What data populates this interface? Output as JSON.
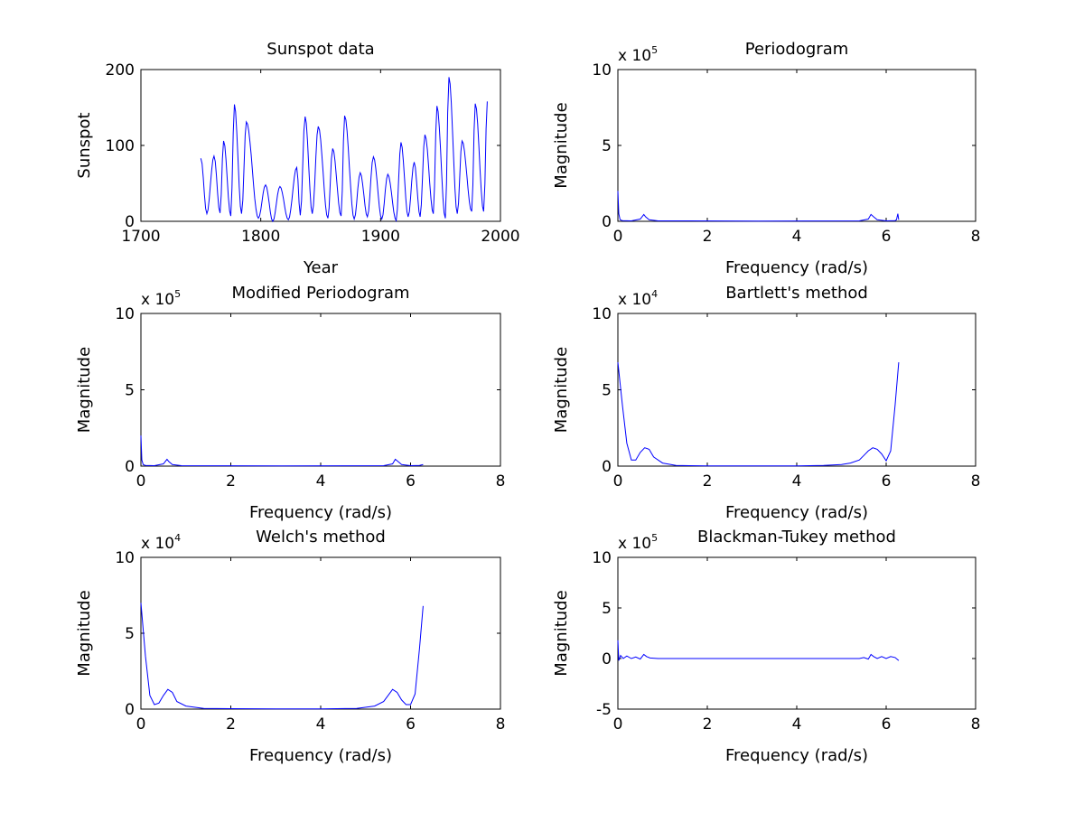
{
  "figure": {
    "background": "#ffffff",
    "line_color": "#0000ff"
  },
  "chart_data": [
    {
      "type": "line",
      "title": "Sunspot data",
      "xlabel": "Year",
      "ylabel": "Sunspot",
      "xlim": [
        1700,
        2000
      ],
      "ylim": [
        0,
        200
      ],
      "xticks": [
        1700,
        1800,
        1900,
        2000
      ],
      "yticks": [
        0,
        100,
        200
      ],
      "exponent": "",
      "series": [
        {
          "peaks": [
            [
              1750,
              83
            ],
            [
              1761,
              86
            ],
            [
              1769,
              106
            ],
            [
              1778,
              154
            ],
            [
              1788,
              131
            ],
            [
              1804,
              48
            ],
            [
              1816,
              46
            ],
            [
              1830,
              71
            ],
            [
              1837,
              138
            ],
            [
              1848,
              125
            ],
            [
              1860,
              96
            ],
            [
              1870,
              139
            ],
            [
              1883,
              64
            ],
            [
              1894,
              85
            ],
            [
              1906,
              62
            ],
            [
              1917,
              104
            ],
            [
              1928,
              78
            ],
            [
              1937,
              114
            ],
            [
              1947,
              152
            ],
            [
              1957,
              190
            ],
            [
              1968,
              106
            ],
            [
              1979,
              155
            ],
            [
              1989,
              158
            ]
          ],
          "troughs": [
            [
              1755,
              10
            ],
            [
              1766,
              11
            ],
            [
              1775,
              7
            ],
            [
              1784,
              10
            ],
            [
              1798,
              4
            ],
            [
              1810,
              0
            ],
            [
              1823,
              2
            ],
            [
              1833,
              8
            ],
            [
              1843,
              10
            ],
            [
              1856,
              4
            ],
            [
              1867,
              7
            ],
            [
              1878,
              3
            ],
            [
              1889,
              6
            ],
            [
              1901,
              3
            ],
            [
              1913,
              1
            ],
            [
              1923,
              6
            ],
            [
              1933,
              6
            ],
            [
              1944,
              10
            ],
            [
              1954,
              4
            ],
            [
              1964,
              10
            ],
            [
              1976,
              13
            ],
            [
              1986,
              13
            ]
          ]
        }
      ]
    },
    {
      "type": "line",
      "title": "Periodogram",
      "xlabel": "Frequency (rad/s)",
      "ylabel": "Magnitude",
      "xlim": [
        0,
        8
      ],
      "ylim": [
        0,
        10
      ],
      "xticks": [
        0,
        2,
        4,
        6,
        8
      ],
      "yticks": [
        0,
        5,
        10
      ],
      "exponent": "5",
      "series": [
        {
          "x": [
            0,
            0.02,
            0.05,
            0.1,
            0.3,
            0.5,
            0.58,
            0.62,
            0.7,
            0.9,
            3.14,
            5.4,
            5.6,
            5.66,
            5.72,
            5.8,
            6.0,
            6.2,
            6.23,
            6.26,
            6.28
          ],
          "y": [
            2.0,
            0.5,
            0.1,
            0.05,
            0.03,
            0.15,
            0.45,
            0.3,
            0.1,
            0.03,
            0.02,
            0.03,
            0.15,
            0.45,
            0.3,
            0.1,
            0.03,
            0.05,
            0.1,
            0.5,
            0.1
          ]
        }
      ]
    },
    {
      "type": "line",
      "title": "Modified Periodogram",
      "xlabel": "Frequency (rad/s)",
      "ylabel": "Magnitude",
      "xlim": [
        0,
        8
      ],
      "ylim": [
        0,
        10
      ],
      "xticks": [
        0,
        2,
        4,
        6,
        8
      ],
      "yticks": [
        0,
        5,
        10
      ],
      "exponent": "5",
      "series": [
        {
          "x": [
            0,
            0.02,
            0.05,
            0.1,
            0.3,
            0.5,
            0.58,
            0.62,
            0.7,
            0.9,
            3.14,
            5.4,
            5.6,
            5.66,
            5.72,
            5.8,
            6.0,
            6.2,
            6.28
          ],
          "y": [
            2.0,
            0.4,
            0.1,
            0.05,
            0.03,
            0.15,
            0.45,
            0.3,
            0.1,
            0.03,
            0.02,
            0.03,
            0.15,
            0.45,
            0.3,
            0.1,
            0.03,
            0.05,
            0.1
          ]
        }
      ]
    },
    {
      "type": "line",
      "title": "Bartlett's method",
      "xlabel": "Frequency (rad/s)",
      "ylabel": "Magnitude",
      "xlim": [
        0,
        8
      ],
      "ylim": [
        0,
        10
      ],
      "xticks": [
        0,
        2,
        4,
        6,
        8
      ],
      "yticks": [
        0,
        5,
        10
      ],
      "exponent": "4",
      "series": [
        {
          "x": [
            0,
            0.1,
            0.2,
            0.3,
            0.4,
            0.5,
            0.6,
            0.7,
            0.8,
            1.0,
            1.3,
            1.6,
            2.0,
            3.0,
            4.0,
            4.6,
            5.0,
            5.2,
            5.4,
            5.5,
            5.6,
            5.7,
            5.8,
            5.9,
            6.0,
            6.1,
            6.2,
            6.28
          ],
          "y": [
            6.8,
            4.0,
            1.5,
            0.4,
            0.4,
            0.9,
            1.2,
            1.1,
            0.6,
            0.2,
            0.05,
            0.03,
            0.02,
            0.02,
            0.02,
            0.04,
            0.1,
            0.2,
            0.4,
            0.7,
            1.0,
            1.2,
            1.1,
            0.8,
            0.35,
            1.0,
            4.0,
            6.8
          ]
        }
      ]
    },
    {
      "type": "line",
      "title": "Welch's method",
      "xlabel": "Frequency (rad/s)",
      "ylabel": "Magnitude",
      "xlim": [
        0,
        8
      ],
      "ylim": [
        0,
        10
      ],
      "xticks": [
        0,
        2,
        4,
        6,
        8
      ],
      "yticks": [
        0,
        5,
        10
      ],
      "exponent": "4",
      "series": [
        {
          "x": [
            0,
            0.1,
            0.2,
            0.3,
            0.4,
            0.5,
            0.6,
            0.7,
            0.8,
            1.0,
            1.4,
            2.0,
            3.0,
            4.0,
            4.8,
            5.2,
            5.4,
            5.5,
            5.6,
            5.7,
            5.8,
            5.9,
            6.0,
            6.1,
            6.2,
            6.28
          ],
          "y": [
            7.0,
            3.5,
            0.9,
            0.3,
            0.4,
            0.9,
            1.3,
            1.1,
            0.5,
            0.2,
            0.05,
            0.03,
            0.02,
            0.02,
            0.05,
            0.2,
            0.5,
            0.9,
            1.3,
            1.1,
            0.6,
            0.3,
            0.3,
            1.0,
            4.0,
            6.8
          ]
        }
      ]
    },
    {
      "type": "line",
      "title": "Blackman-Tukey method",
      "xlabel": "Frequency (rad/s)",
      "ylabel": "Magnitude",
      "xlim": [
        0,
        8
      ],
      "ylim": [
        -5,
        10
      ],
      "xticks": [
        0,
        2,
        4,
        6,
        8
      ],
      "yticks": [
        -5,
        0,
        5,
        10
      ],
      "exponent": "5",
      "series": [
        {
          "x": [
            0,
            0.02,
            0.06,
            0.12,
            0.2,
            0.3,
            0.4,
            0.5,
            0.58,
            0.64,
            0.72,
            0.9,
            3.14,
            5.4,
            5.5,
            5.6,
            5.66,
            5.72,
            5.8,
            5.9,
            6.0,
            6.1,
            6.2,
            6.28
          ],
          "y": [
            1.8,
            -0.2,
            0.3,
            0.0,
            0.25,
            0.0,
            0.15,
            -0.05,
            0.4,
            0.2,
            0.05,
            0.0,
            0.0,
            0.0,
            0.1,
            -0.05,
            0.4,
            0.2,
            0.0,
            0.2,
            0.0,
            0.2,
            0.1,
            -0.2
          ]
        }
      ]
    }
  ]
}
